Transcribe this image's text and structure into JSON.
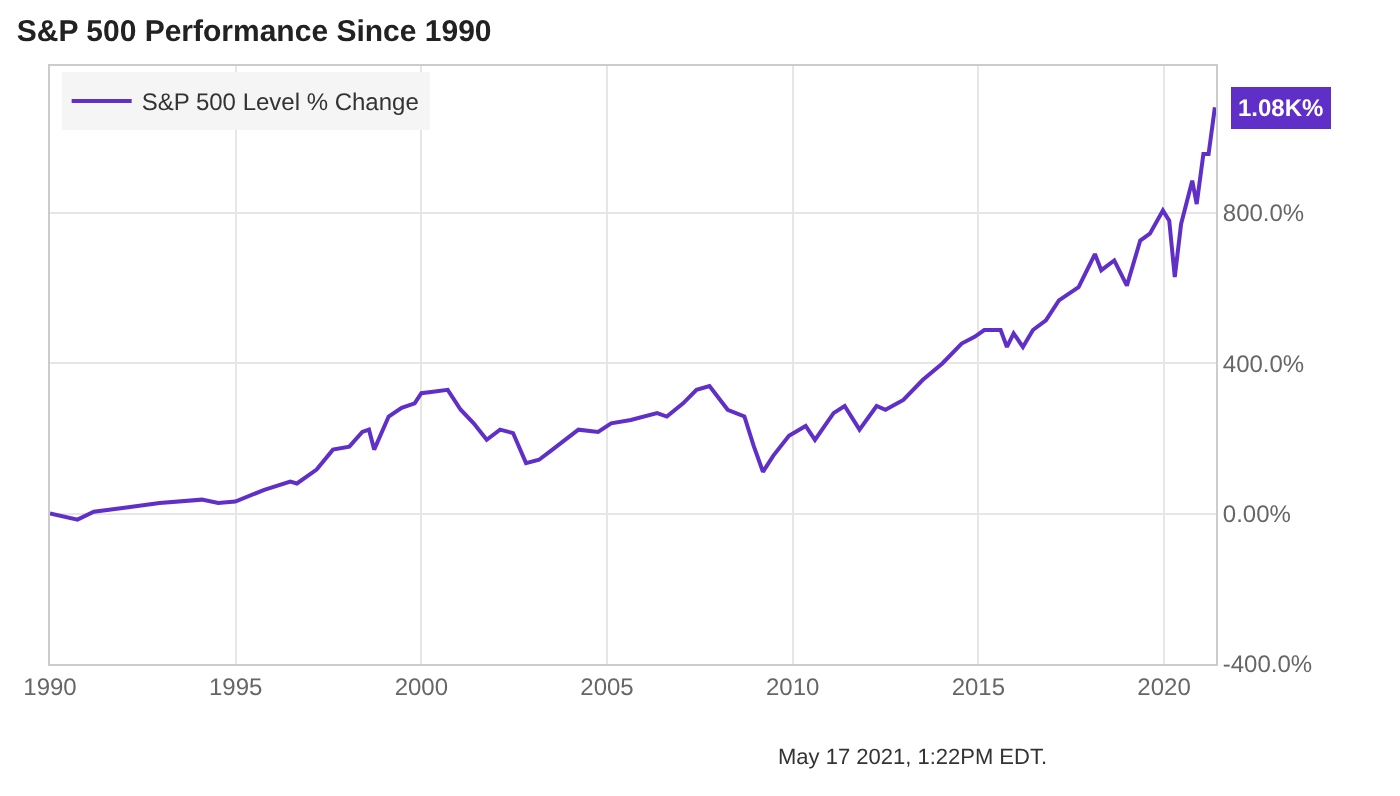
{
  "chart_data": {
    "type": "line",
    "title": "S&P 500 Performance Since 1990",
    "x": [
      1990.0,
      1990.74,
      1991.18,
      1992.06,
      1992.95,
      1994.09,
      1994.53,
      1994.99,
      1995.77,
      1996.47,
      1996.65,
      1997.18,
      1997.62,
      1998.06,
      1998.41,
      1998.59,
      1998.73,
      1999.12,
      1999.47,
      1999.82,
      2000.0,
      2000.26,
      2000.71,
      2001.06,
      2001.41,
      2001.76,
      2002.12,
      2002.47,
      2002.82,
      2003.17,
      2003.53,
      2004.23,
      2004.76,
      2005.11,
      2005.64,
      2006.35,
      2006.61,
      2007.05,
      2007.41,
      2007.76,
      2008.25,
      2008.7,
      2008.95,
      2009.2,
      2009.48,
      2009.9,
      2010.35,
      2010.6,
      2011.1,
      2011.4,
      2011.8,
      2012.26,
      2012.5,
      2012.98,
      2013.5,
      2014.03,
      2014.55,
      2014.9,
      2015.16,
      2015.6,
      2015.77,
      2015.95,
      2016.2,
      2016.47,
      2016.82,
      2017.17,
      2017.7,
      2018.14,
      2018.31,
      2018.66,
      2019.0,
      2019.36,
      2019.62,
      2019.97,
      2020.14,
      2020.29,
      2020.46,
      2020.76,
      2020.88,
      2021.06,
      2021.2,
      2021.37
    ],
    "series": [
      {
        "name": "S&P 500 Level % Change",
        "color": "#5f2fc8",
        "values": [
          0,
          -16,
          5,
          16,
          28,
          37,
          28,
          32,
          63,
          85,
          80,
          117,
          170,
          178,
          217,
          223,
          170,
          258,
          281,
          293,
          320,
          323,
          329,
          276,
          240,
          196,
          223,
          214,
          134,
          143,
          170,
          223,
          217,
          240,
          249,
          267,
          258,
          293,
          329,
          339,
          276,
          258,
          180,
          111,
          154,
          207,
          233,
          196,
          267,
          286,
          223,
          286,
          276,
          302,
          355,
          399,
          452,
          470,
          488,
          488,
          443,
          479,
          443,
          488,
          514,
          567,
          602,
          690,
          647,
          673,
          606,
          726,
          744,
          806,
          779,
          629,
          770,
          885,
          823,
          956,
          956,
          1080
        ],
        "value_labels": [
          null,
          null,
          null,
          null,
          null,
          null,
          null,
          null,
          null,
          null,
          null,
          null,
          null,
          null,
          null,
          null,
          null,
          null,
          null,
          null,
          null,
          null,
          null,
          null,
          null,
          null,
          null,
          null,
          null,
          null,
          null,
          null,
          null,
          null,
          null,
          null,
          null,
          null,
          null,
          null,
          null,
          null,
          null,
          null,
          null,
          null,
          null,
          null,
          null,
          null,
          null,
          null,
          null,
          null,
          null,
          null,
          null,
          null,
          null,
          null,
          null,
          null,
          null,
          null,
          null,
          null,
          null,
          null,
          null,
          null,
          null,
          null,
          null,
          null,
          null,
          null,
          null,
          null,
          null,
          null,
          null,
          "1.08K%"
        ]
      }
    ],
    "xlim": [
      1990,
      2021.4
    ],
    "xticks": [
      1990,
      1995,
      2000,
      2005,
      2010,
      2015,
      2020
    ],
    "ylim": [
      -400,
      1190
    ],
    "yticks": [
      {
        "value": -400,
        "label": "-400.0%"
      },
      {
        "value": 0,
        "label": "0.00%"
      },
      {
        "value": 400,
        "label": "400.0%"
      },
      {
        "value": 800,
        "label": "800.0%"
      }
    ],
    "grid": true,
    "legend": "top left",
    "marker": "none",
    "line_style": "solid",
    "annotations": [
      "May 17 2021, 1:22PM EDT."
    ]
  }
}
